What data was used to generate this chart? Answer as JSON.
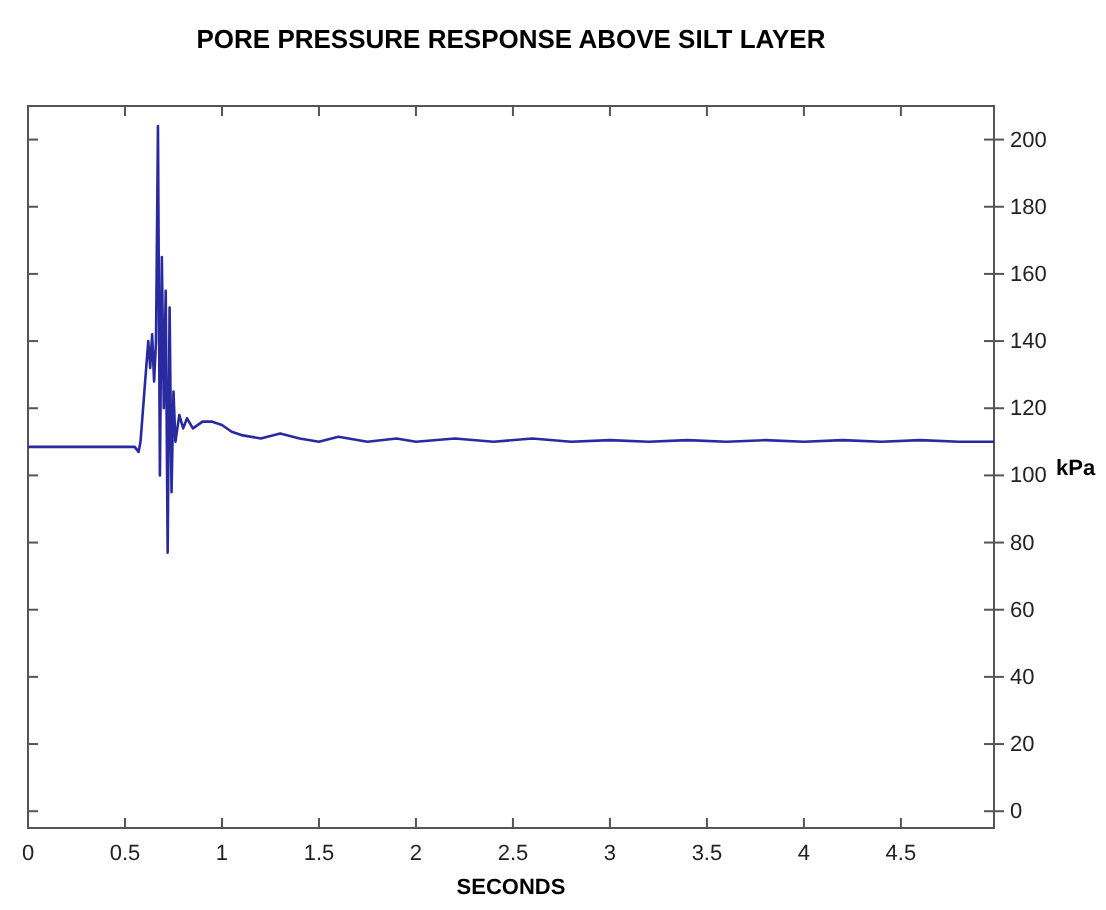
{
  "chart_data": {
    "type": "line",
    "title": "PORE PRESSURE RESPONSE ABOVE SILT LAYER",
    "xlabel": "SECONDS",
    "ylabel": "kPa",
    "xlim": [
      0,
      4.98
    ],
    "xticks": [
      0,
      0.5,
      1,
      1.5,
      2,
      2.5,
      3,
      3.5,
      4,
      4.5
    ],
    "ylim": [
      -5,
      210
    ],
    "yticks": [
      0,
      20,
      40,
      60,
      80,
      100,
      120,
      140,
      160,
      180,
      200
    ],
    "marker": "none",
    "line_style": "solid",
    "series": [
      {
        "color": "#2a2aa0",
        "x": [
          0,
          0.55,
          0.57,
          0.58,
          0.6,
          0.62,
          0.63,
          0.64,
          0.65,
          0.66,
          0.67,
          0.68,
          0.69,
          0.7,
          0.71,
          0.72,
          0.73,
          0.74,
          0.75,
          0.76,
          0.78,
          0.8,
          0.82,
          0.85,
          0.9,
          0.95,
          1.0,
          1.05,
          1.1,
          1.2,
          1.3,
          1.4,
          1.5,
          1.6,
          1.75,
          1.9,
          2.0,
          2.2,
          2.4,
          2.6,
          2.8,
          3.0,
          3.2,
          3.4,
          3.6,
          3.8,
          4.0,
          4.2,
          4.4,
          4.6,
          4.8,
          4.98
        ],
        "values": [
          108.5,
          108.5,
          107,
          110,
          125,
          140,
          132,
          142,
          128,
          140,
          204,
          100,
          165,
          120,
          155,
          77,
          150,
          95,
          125,
          110,
          118,
          114,
          117,
          114,
          116,
          116,
          115,
          113,
          112,
          111,
          112.5,
          111,
          110,
          111.5,
          110,
          111,
          110,
          111,
          110,
          111,
          110,
          110.5,
          110,
          110.5,
          110,
          110.5,
          110,
          110.5,
          110,
          110.5,
          110,
          110
        ]
      }
    ]
  }
}
